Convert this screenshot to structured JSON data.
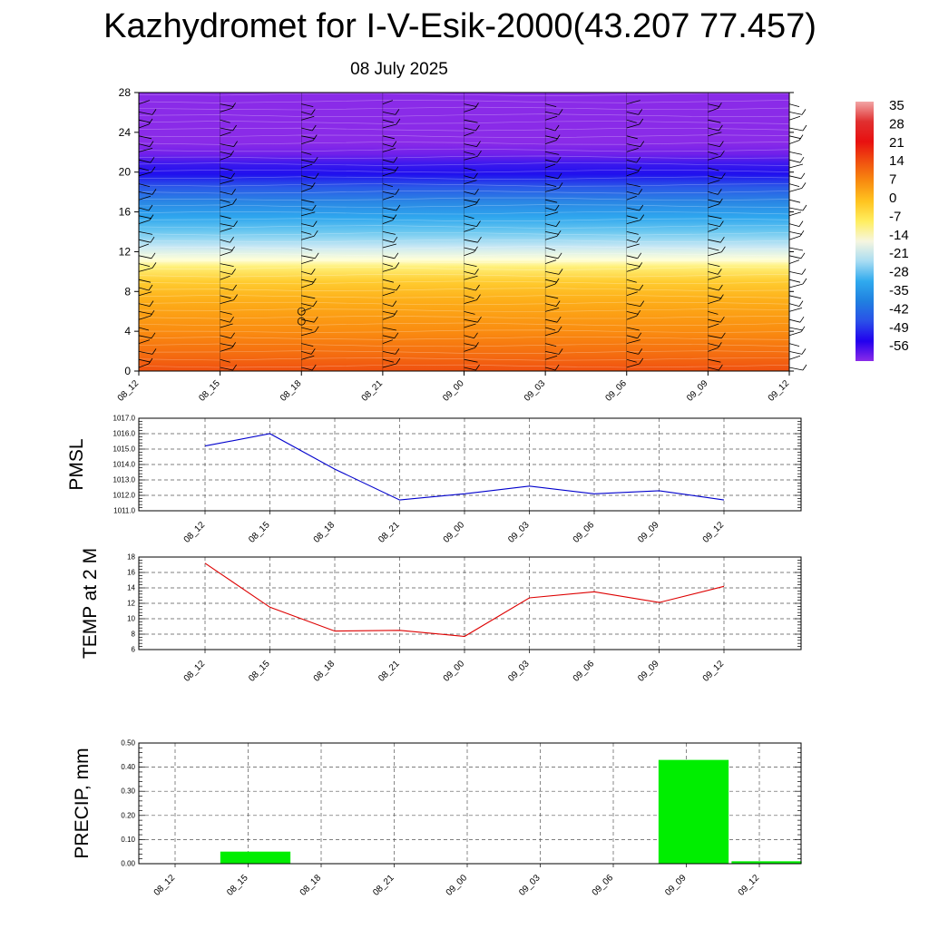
{
  "header": {
    "title": "Kazhydromet for I-V-Esik-2000(43.207 77.457)",
    "date": "08 July 2025"
  },
  "colors": {
    "pmsl_line": "#0000cc",
    "temp_line": "#dd0000",
    "precip_bar": "#00ee00"
  },
  "chart_data": [
    {
      "type": "heatmap",
      "name": "vertical-cross-section",
      "x_categories": [
        "08_12",
        "08_15",
        "08_18",
        "08_21",
        "09_00",
        "09_03",
        "09_06",
        "09_09",
        "09_12"
      ],
      "y_ticks": [
        0,
        4,
        8,
        12,
        16,
        20,
        24,
        28
      ],
      "ylim": [
        0,
        28
      ],
      "colorbar": {
        "labels": [
          "35",
          "28",
          "21",
          "14",
          "7",
          "0",
          "-7",
          "-14",
          "-21",
          "-28",
          "-35",
          "-42",
          "-49",
          "-56"
        ],
        "stops": [
          {
            "value": 35,
            "color": "#f2a6a6"
          },
          {
            "value": 28,
            "color": "#e03030"
          },
          {
            "value": 21,
            "color": "#e81010"
          },
          {
            "value": 14,
            "color": "#f05010"
          },
          {
            "value": 7,
            "color": "#f88c10"
          },
          {
            "value": 0,
            "color": "#ffc420"
          },
          {
            "value": -7,
            "color": "#ffee60"
          },
          {
            "value": -14,
            "color": "#f6f6e0"
          },
          {
            "value": -21,
            "color": "#a8dcf2"
          },
          {
            "value": -28,
            "color": "#30aaee"
          },
          {
            "value": -35,
            "color": "#2080e0"
          },
          {
            "value": -42,
            "color": "#2a50e8"
          },
          {
            "value": -49,
            "color": "#2200ee"
          },
          {
            "value": -56,
            "color": "#8a2be8"
          }
        ]
      },
      "profile": [
        {
          "y": 0,
          "color": "#f05010"
        },
        {
          "y": 1.5,
          "color": "#f46a10"
        },
        {
          "y": 4,
          "color": "#fa8c10"
        },
        {
          "y": 7,
          "color": "#fdad18"
        },
        {
          "y": 9,
          "color": "#ffcc30"
        },
        {
          "y": 10.5,
          "color": "#fff07a"
        },
        {
          "y": 11.2,
          "color": "#ffffd8"
        },
        {
          "y": 12.5,
          "color": "#c8e8f4"
        },
        {
          "y": 14,
          "color": "#6cc8f0"
        },
        {
          "y": 15.5,
          "color": "#2ea6ee"
        },
        {
          "y": 17,
          "color": "#2a86e4"
        },
        {
          "y": 18.5,
          "color": "#2a58e8"
        },
        {
          "y": 19.8,
          "color": "#2010ee"
        },
        {
          "y": 20.8,
          "color": "#3a18ee"
        },
        {
          "y": 21.8,
          "color": "#7020ea"
        },
        {
          "y": 23,
          "color": "#8a2be8"
        },
        {
          "y": 28,
          "color": "#8a2be8"
        }
      ]
    },
    {
      "type": "line",
      "name": "pmsl",
      "ylabel": "PMSL",
      "categories": [
        "08_12",
        "08_15",
        "08_18",
        "08_21",
        "09_00",
        "09_03",
        "09_06",
        "09_09",
        "09_12"
      ],
      "values": [
        1015.2,
        1016.0,
        1013.7,
        1011.7,
        1012.1,
        1012.6,
        1012.1,
        1012.3,
        1011.7
      ],
      "ylim": [
        1011.0,
        1017.0
      ],
      "yticks": [
        "1011.0",
        "1012.0",
        "1013.0",
        "1014.0",
        "1015.0",
        "1016.0",
        "1017.0"
      ]
    },
    {
      "type": "line",
      "name": "temp",
      "ylabel": "TEMP at 2 M",
      "categories": [
        "08_12",
        "08_15",
        "08_18",
        "08_21",
        "09_00",
        "09_03",
        "09_06",
        "09_09",
        "09_12"
      ],
      "values": [
        17.2,
        11.5,
        8.4,
        8.5,
        7.7,
        12.7,
        13.5,
        12.1,
        14.2
      ],
      "ylim": [
        6,
        18
      ],
      "yticks": [
        "6",
        "8",
        "10",
        "12",
        "14",
        "16",
        "18"
      ]
    },
    {
      "type": "bar",
      "name": "precip",
      "ylabel": "PRECIP, mm",
      "categories": [
        "08_12",
        "08_15",
        "08_18",
        "08_21",
        "09_00",
        "09_03",
        "09_06",
        "09_09",
        "09_12"
      ],
      "values": [
        0.0,
        0.05,
        0.0,
        0.0,
        0.0,
        0.0,
        0.0,
        0.43,
        0.01
      ],
      "ylim": [
        0.0,
        0.5
      ],
      "yticks": [
        "0.00",
        "0.10",
        "0.20",
        "0.30",
        "0.40",
        "0.50"
      ]
    }
  ]
}
